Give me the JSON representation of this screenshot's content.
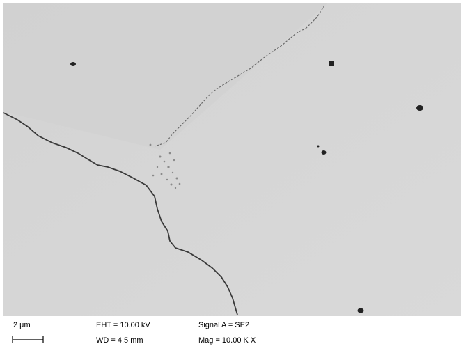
{
  "info_bar": {
    "scale_label": "2 µm",
    "eht": "EHT = 10.00 kV",
    "wd": "WD = 4.5 mm",
    "signal": "Signal A = SE2",
    "mag": "Mag = 10.00 K X"
  }
}
